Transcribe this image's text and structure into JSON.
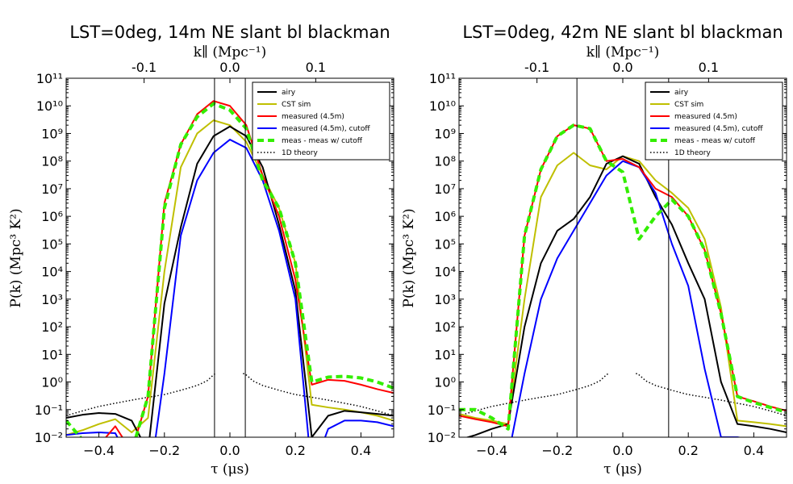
{
  "figure": {
    "panels": [
      {
        "title": "LST=0deg, 14m NE slant bl blackman",
        "xlabel": "τ (μs)",
        "ylabel": "P(k)   (Mpc³ K²)",
        "top_xlabel": "k∥ (Mpc⁻¹)"
      },
      {
        "title": "LST=0deg, 42m NE slant bl blackman",
        "xlabel": "τ (μs)",
        "ylabel": "P(k)   (Mpc³ K²)",
        "top_xlabel": "k∥ (Mpc⁻¹)"
      }
    ]
  },
  "chart_data": [
    {
      "type": "line",
      "title": "LST=0deg, 14m NE slant bl blackman",
      "xlabel": "τ (μs)",
      "ylabel": "P(k)   (Mpc³ K²)",
      "top_xlabel": "k∥ (Mpc⁻¹)",
      "xlim": [
        -0.5,
        0.5
      ],
      "ylim_log10": [
        -2,
        11
      ],
      "log_y": true,
      "x_ticks": [
        -0.4,
        -0.2,
        0.0,
        0.2,
        0.4
      ],
      "x_tick_labels": [
        "−0.4",
        "−0.2",
        "0.0",
        "0.2",
        "0.4"
      ],
      "y_ticks_log10": [
        -2,
        -1,
        0,
        1,
        2,
        3,
        4,
        5,
        6,
        7,
        8,
        9,
        10,
        11
      ],
      "top_ticks": [
        {
          "x": -0.262,
          "label": "-0.1"
        },
        {
          "x": 0.0,
          "label": "0.0"
        },
        {
          "x": 0.262,
          "label": "0.1"
        }
      ],
      "vlines": [
        -0.047,
        0.047
      ],
      "legend": "top-right",
      "series": [
        {
          "name": "airy",
          "color": "#000000",
          "width": 2,
          "dash": "",
          "x": [
            -0.5,
            -0.45,
            -0.4,
            -0.35,
            -0.3,
            -0.25,
            -0.2,
            -0.15,
            -0.1,
            -0.05,
            0,
            0.05,
            0.1,
            0.15,
            0.2,
            0.25,
            0.3,
            0.35,
            0.4,
            0.45,
            0.5
          ],
          "y": [
            0.05,
            0.065,
            0.075,
            0.07,
            0.04,
            0.003,
            700,
            400000,
            80000000,
            800000000,
            1800000000,
            800000000,
            60000000,
            500000,
            2000,
            0.01,
            0.06,
            0.09,
            0.08,
            0.07,
            0.06
          ]
        },
        {
          "name": "CST sim",
          "color": "#bfbf00",
          "width": 2,
          "dash": "",
          "x": [
            -0.5,
            -0.45,
            -0.4,
            -0.35,
            -0.3,
            -0.25,
            -0.2,
            -0.15,
            -0.1,
            -0.05,
            0,
            0.05,
            0.1,
            0.15,
            0.2,
            0.25,
            0.3,
            0.35,
            0.4,
            0.45,
            0.5
          ],
          "y": [
            0.012,
            0.018,
            0.03,
            0.045,
            0.015,
            0.05,
            10000,
            60000000,
            1000000000,
            3000000000,
            2000000000,
            500000000,
            30000000,
            2000000,
            20000,
            0.15,
            0.12,
            0.1,
            0.08,
            0.06,
            0.04
          ]
        },
        {
          "name": "measured (4.5m)",
          "color": "#ff0000",
          "width": 2,
          "dash": "",
          "x": [
            -0.5,
            -0.45,
            -0.4,
            -0.35,
            -0.3,
            -0.25,
            -0.2,
            -0.15,
            -0.1,
            -0.05,
            0,
            0.05,
            0.1,
            0.15,
            0.2,
            0.25,
            0.3,
            0.35,
            0.4,
            0.45,
            0.5
          ],
          "y": [
            0.0005,
            0.002,
            0.005,
            0.025,
            0.003,
            0.3,
            3000000,
            400000000,
            5000000000,
            15000000000,
            10000000000,
            2000000000,
            30000000,
            1000000,
            5000,
            0.8,
            1.2,
            1.1,
            0.8,
            0.55,
            0.4
          ]
        },
        {
          "name": "measured (4.5m), cutoff",
          "color": "#0000ff",
          "width": 2,
          "dash": "",
          "x": [
            -0.5,
            -0.45,
            -0.4,
            -0.35,
            -0.3,
            -0.25,
            -0.2,
            -0.15,
            -0.1,
            -0.05,
            0,
            0.05,
            0.1,
            0.15,
            0.2,
            0.25,
            0.3,
            0.35,
            0.4,
            0.45,
            0.5
          ],
          "y": [
            0.012,
            0.014,
            0.015,
            0.014,
            0.001,
            0.0001,
            2,
            200000,
            20000000,
            200000000,
            600000000,
            300000000,
            20000000,
            300000,
            1000,
            0.0005,
            0.02,
            0.04,
            0.04,
            0.035,
            0.025
          ]
        },
        {
          "name": "meas - meas w/ cutoff",
          "color": "#33ee00",
          "width": 4,
          "dash": "8,5",
          "x": [
            -0.5,
            -0.45,
            -0.4,
            -0.35,
            -0.3,
            -0.25,
            -0.2,
            -0.15,
            -0.1,
            -0.05,
            0,
            0.05,
            0.1,
            0.15,
            0.2,
            0.25,
            0.3,
            0.35,
            0.4,
            0.45,
            0.5
          ],
          "y": [
            0.04,
            0.008,
            0.005,
            0.002,
            0.003,
            0.3,
            2000000,
            400000000,
            4000000000,
            12000000000,
            7000000000,
            1500000000,
            20000000,
            2000000,
            20000,
            1,
            1.5,
            1.6,
            1.4,
            1,
            0.6
          ]
        },
        {
          "name": "1D theory",
          "color": "#000000",
          "width": 1.5,
          "dash": "1.5,2.5",
          "x": [
            -0.5,
            -0.45,
            -0.4,
            -0.35,
            -0.3,
            -0.25,
            -0.2,
            -0.15,
            -0.1,
            -0.07,
            -0.055,
            -0.045,
            -0.04,
            null,
            0.04,
            0.045,
            0.055,
            0.07,
            0.1,
            0.15,
            0.2,
            0.25,
            0.3,
            0.35,
            0.4,
            0.45,
            0.5
          ],
          "y": [
            0.06,
            0.09,
            0.13,
            0.17,
            0.22,
            0.28,
            0.35,
            0.5,
            0.75,
            1.1,
            1.6,
            2,
            2,
            null,
            2,
            2,
            1.6,
            1.1,
            0.75,
            0.5,
            0.35,
            0.28,
            0.22,
            0.17,
            0.13,
            0.09,
            0.06
          ]
        }
      ]
    },
    {
      "type": "line",
      "title": "LST=0deg, 42m NE slant bl blackman",
      "xlabel": "τ (μs)",
      "ylabel": "P(k)   (Mpc³ K²)",
      "top_xlabel": "k∥ (Mpc⁻¹)",
      "xlim": [
        -0.5,
        0.5
      ],
      "ylim_log10": [
        -2,
        11
      ],
      "log_y": true,
      "x_ticks": [
        -0.4,
        -0.2,
        0.0,
        0.2,
        0.4
      ],
      "x_tick_labels": [
        "−0.4",
        "−0.2",
        "0.0",
        "0.2",
        "0.4"
      ],
      "y_ticks_log10": [
        -2,
        -1,
        0,
        1,
        2,
        3,
        4,
        5,
        6,
        7,
        8,
        9,
        10,
        11
      ],
      "top_ticks": [
        {
          "x": -0.262,
          "label": "-0.1"
        },
        {
          "x": 0.0,
          "label": "0.0"
        },
        {
          "x": 0.262,
          "label": "0.1"
        }
      ],
      "vlines": [
        -0.14,
        0.14
      ],
      "legend": "top-right",
      "series": [
        {
          "name": "airy",
          "color": "#000000",
          "width": 2,
          "dash": "",
          "x": [
            -0.5,
            -0.45,
            -0.4,
            -0.35,
            -0.3,
            -0.25,
            -0.2,
            -0.15,
            -0.1,
            -0.05,
            0,
            0.05,
            0.1,
            0.15,
            0.2,
            0.25,
            0.3,
            0.35,
            0.4,
            0.45,
            0.5
          ],
          "y": [
            0.008,
            0.012,
            0.02,
            0.03,
            100,
            20000,
            300000,
            800000,
            5000000,
            80000000,
            150000000,
            80000000,
            5000000,
            500000,
            20000,
            1000,
            1,
            0.03,
            0.025,
            0.02,
            0.015
          ]
        },
        {
          "name": "CST sim",
          "color": "#bfbf00",
          "width": 2,
          "dash": "",
          "x": [
            -0.5,
            -0.45,
            -0.4,
            -0.35,
            -0.3,
            -0.25,
            -0.2,
            -0.15,
            -0.1,
            -0.05,
            0,
            0.05,
            0.1,
            0.15,
            0.2,
            0.25,
            0.3,
            0.35,
            0.4,
            0.45,
            0.5
          ],
          "y": [
            0.07,
            0.05,
            0.04,
            0.03,
            1000,
            5000000,
            70000000,
            200000000,
            70000000,
            50000000,
            150000000,
            100000000,
            20000000,
            7000000,
            2000000,
            150000,
            500,
            0.04,
            0.035,
            0.03,
            0.025
          ]
        },
        {
          "name": "measured (4.5m)",
          "color": "#ff0000",
          "width": 2,
          "dash": "",
          "x": [
            -0.5,
            -0.45,
            -0.4,
            -0.35,
            -0.3,
            -0.25,
            -0.2,
            -0.15,
            -0.1,
            -0.05,
            0,
            0.05,
            0.1,
            0.15,
            0.2,
            0.25,
            0.3,
            0.35,
            0.4,
            0.45,
            0.5
          ],
          "y": [
            0.06,
            0.045,
            0.035,
            0.025,
            200000,
            50000000,
            800000000,
            2000000000,
            1500000000,
            100000000,
            120000000,
            60000000,
            10000000,
            5000000,
            1000000,
            60000,
            300,
            0.3,
            0.2,
            0.13,
            0.09
          ]
        },
        {
          "name": "measured (4.5m), cutoff",
          "color": "#0000ff",
          "width": 2,
          "dash": "",
          "x": [
            -0.5,
            -0.45,
            -0.4,
            -0.35,
            -0.3,
            -0.25,
            -0.2,
            -0.15,
            -0.1,
            -0.05,
            0,
            0.05,
            0.1,
            0.15,
            0.2,
            0.25,
            0.3,
            0.35,
            0.4,
            0.45,
            0.5
          ],
          "y": [
            0.0005,
            0.0008,
            0.001,
            0.002,
            2,
            1000,
            30000,
            300000,
            3000000,
            30000000,
            100000000,
            60000000,
            7000000,
            100000,
            3000,
            3,
            0.01,
            0.01,
            0.008,
            0.005,
            0.003
          ]
        },
        {
          "name": "meas - meas w/ cutoff",
          "color": "#33ee00",
          "width": 4,
          "dash": "8,5",
          "x": [
            -0.5,
            -0.45,
            -0.4,
            -0.35,
            -0.3,
            -0.25,
            -0.2,
            -0.15,
            -0.1,
            -0.05,
            0,
            0.05,
            0.1,
            0.15,
            0.2,
            0.25,
            0.3,
            0.35,
            0.4,
            0.45,
            0.5
          ],
          "y": [
            0.1,
            0.1,
            0.05,
            0.02,
            200000,
            50000000,
            800000000,
            2000000000,
            1500000000,
            100000000,
            40000000,
            150000,
            1000000,
            4000000,
            1000000,
            60000,
            300,
            0.3,
            0.18,
            0.12,
            0.08
          ]
        },
        {
          "name": "1D theory",
          "color": "#000000",
          "width": 1.5,
          "dash": "1.5,2.5",
          "x": [
            -0.5,
            -0.45,
            -0.4,
            -0.35,
            -0.3,
            -0.25,
            -0.2,
            -0.15,
            -0.1,
            -0.07,
            -0.055,
            -0.045,
            -0.04,
            null,
            0.04,
            0.045,
            0.055,
            0.07,
            0.1,
            0.15,
            0.2,
            0.25,
            0.3,
            0.35,
            0.4,
            0.45,
            0.5
          ],
          "y": [
            0.06,
            0.09,
            0.13,
            0.17,
            0.22,
            0.28,
            0.35,
            0.5,
            0.75,
            1.1,
            1.6,
            2,
            2,
            null,
            2,
            2,
            1.6,
            1.1,
            0.75,
            0.5,
            0.35,
            0.28,
            0.22,
            0.17,
            0.13,
            0.09,
            0.06
          ]
        }
      ]
    }
  ]
}
